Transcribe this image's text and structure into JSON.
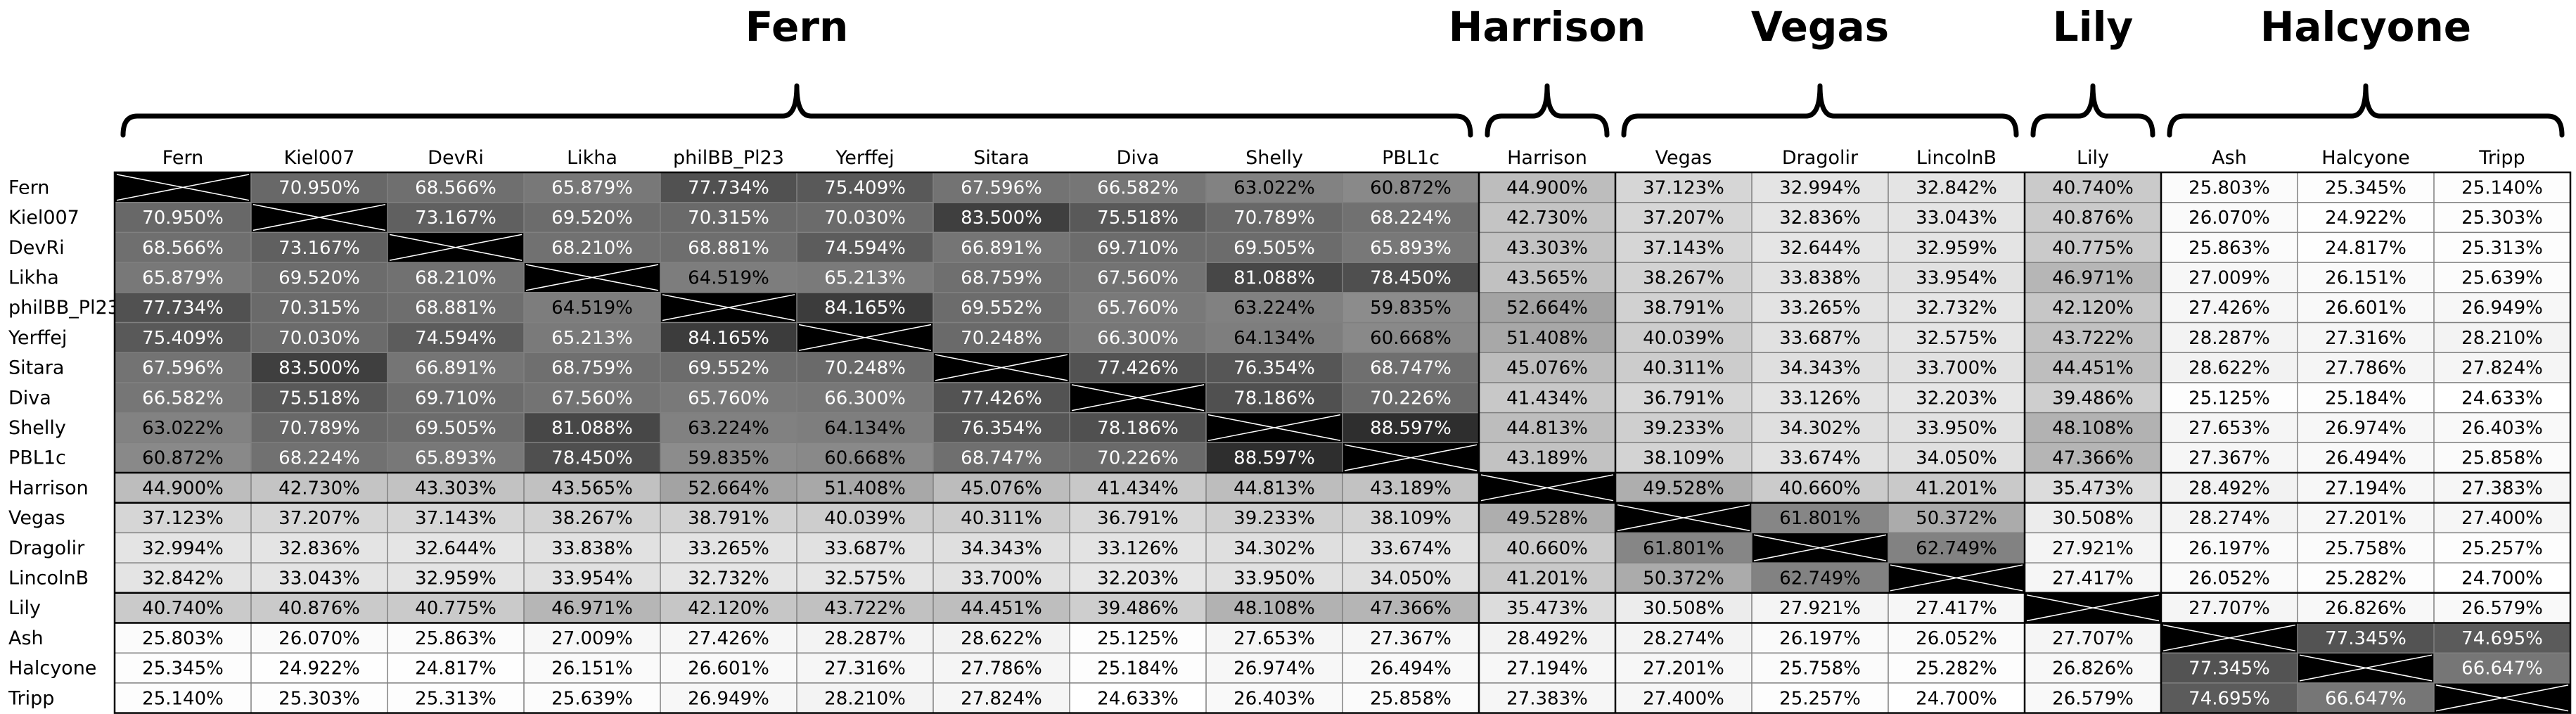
{
  "chart_data": {
    "type": "heatmap",
    "title": "",
    "value_format": "percent_3dp",
    "groups": [
      {
        "name": "Fern",
        "members": [
          "Fern",
          "Kiel007",
          "DevRi",
          "Likha",
          "philBB_Pl23",
          "Yerffej",
          "Sitara",
          "Diva",
          "Shelly",
          "PBL1c"
        ]
      },
      {
        "name": "Harrison",
        "members": [
          "Harrison"
        ]
      },
      {
        "name": "Vegas",
        "members": [
          "Vegas",
          "Dragolir",
          "LincolnB"
        ]
      },
      {
        "name": "Lily",
        "members": [
          "Lily"
        ]
      },
      {
        "name": "Halcyone",
        "members": [
          "Ash",
          "Halcyone",
          "Tripp"
        ]
      }
    ],
    "labels": [
      "Fern",
      "Kiel007",
      "DevRi",
      "Likha",
      "philBB_Pl23",
      "Yerffej",
      "Sitara",
      "Diva",
      "Shelly",
      "PBL1c",
      "Harrison",
      "Vegas",
      "Dragolir",
      "LincolnB",
      "Lily",
      "Ash",
      "Halcyone",
      "Tripp"
    ],
    "values": [
      [
        null,
        70.95,
        68.566,
        65.879,
        77.734,
        75.409,
        67.596,
        66.582,
        63.022,
        60.872,
        44.9,
        37.123,
        32.994,
        32.842,
        40.74,
        25.803,
        25.345,
        25.14
      ],
      [
        70.95,
        null,
        73.167,
        69.52,
        70.315,
        70.03,
        83.5,
        75.518,
        70.789,
        68.224,
        42.73,
        37.207,
        32.836,
        33.043,
        40.876,
        26.07,
        24.922,
        25.303
      ],
      [
        68.566,
        73.167,
        null,
        68.21,
        68.881,
        74.594,
        66.891,
        69.71,
        69.505,
        65.893,
        43.303,
        37.143,
        32.644,
        32.959,
        40.775,
        25.863,
        24.817,
        25.313
      ],
      [
        65.879,
        69.52,
        68.21,
        null,
        64.519,
        65.213,
        68.759,
        67.56,
        81.088,
        78.45,
        43.565,
        38.267,
        33.838,
        33.954,
        46.971,
        27.009,
        26.151,
        25.639
      ],
      [
        77.734,
        70.315,
        68.881,
        64.519,
        null,
        84.165,
        69.552,
        65.76,
        63.224,
        59.835,
        52.664,
        38.791,
        33.265,
        32.732,
        42.12,
        27.426,
        26.601,
        26.949
      ],
      [
        75.409,
        70.03,
        74.594,
        65.213,
        84.165,
        null,
        70.248,
        66.3,
        64.134,
        60.668,
        51.408,
        40.039,
        33.687,
        32.575,
        43.722,
        28.287,
        27.316,
        28.21
      ],
      [
        67.596,
        83.5,
        66.891,
        68.759,
        69.552,
        70.248,
        null,
        77.426,
        76.354,
        68.747,
        45.076,
        40.311,
        34.343,
        33.7,
        44.451,
        28.622,
        27.786,
        27.824
      ],
      [
        66.582,
        75.518,
        69.71,
        67.56,
        65.76,
        66.3,
        77.426,
        null,
        78.186,
        70.226,
        41.434,
        36.791,
        33.126,
        32.203,
        39.486,
        25.125,
        25.184,
        24.633
      ],
      [
        63.022,
        70.789,
        69.505,
        81.088,
        63.224,
        64.134,
        76.354,
        78.186,
        null,
        88.597,
        44.813,
        39.233,
        34.302,
        33.95,
        48.108,
        27.653,
        26.974,
        26.403
      ],
      [
        60.872,
        68.224,
        65.893,
        78.45,
        59.835,
        60.668,
        68.747,
        70.226,
        88.597,
        null,
        43.189,
        38.109,
        33.674,
        34.05,
        47.366,
        27.367,
        26.494,
        25.858
      ],
      [
        44.9,
        42.73,
        43.303,
        43.565,
        52.664,
        51.408,
        45.076,
        41.434,
        44.813,
        43.189,
        null,
        49.528,
        40.66,
        41.201,
        35.473,
        28.492,
        27.194,
        27.383
      ],
      [
        37.123,
        37.207,
        37.143,
        38.267,
        38.791,
        40.039,
        40.311,
        36.791,
        39.233,
        38.109,
        49.528,
        null,
        61.801,
        50.372,
        30.508,
        28.274,
        27.201,
        27.4
      ],
      [
        32.994,
        32.836,
        32.644,
        33.838,
        33.265,
        33.687,
        34.343,
        33.126,
        34.302,
        33.674,
        40.66,
        61.801,
        null,
        62.749,
        27.921,
        26.197,
        25.758,
        25.257
      ],
      [
        32.842,
        33.043,
        32.959,
        33.954,
        32.732,
        32.575,
        33.7,
        32.203,
        33.95,
        34.05,
        41.201,
        50.372,
        62.749,
        null,
        27.417,
        26.052,
        25.282,
        24.7
      ],
      [
        40.74,
        40.876,
        40.775,
        46.971,
        42.12,
        43.722,
        44.451,
        39.486,
        48.108,
        47.366,
        35.473,
        30.508,
        27.921,
        27.417,
        null,
        27.707,
        26.826,
        26.579
      ],
      [
        25.803,
        26.07,
        25.863,
        27.009,
        27.426,
        28.287,
        28.622,
        25.125,
        27.653,
        27.367,
        28.492,
        28.274,
        26.197,
        26.052,
        27.707,
        null,
        77.345,
        74.695
      ],
      [
        25.345,
        24.922,
        24.817,
        26.151,
        26.601,
        27.316,
        27.786,
        25.184,
        26.974,
        26.494,
        27.194,
        27.201,
        25.758,
        25.282,
        26.826,
        77.345,
        null,
        66.647
      ],
      [
        25.14,
        25.303,
        25.313,
        25.639,
        26.949,
        28.21,
        27.824,
        24.633,
        26.403,
        25.858,
        27.383,
        27.4,
        25.257,
        24.7,
        26.579,
        74.695,
        66.647,
        null
      ]
    ],
    "diagonal": "black cell with white X",
    "color_scale": {
      "low": "#ffffff",
      "high": "#2e2e2e",
      "text_dark": "#000000",
      "text_light": "#ffffff"
    }
  }
}
